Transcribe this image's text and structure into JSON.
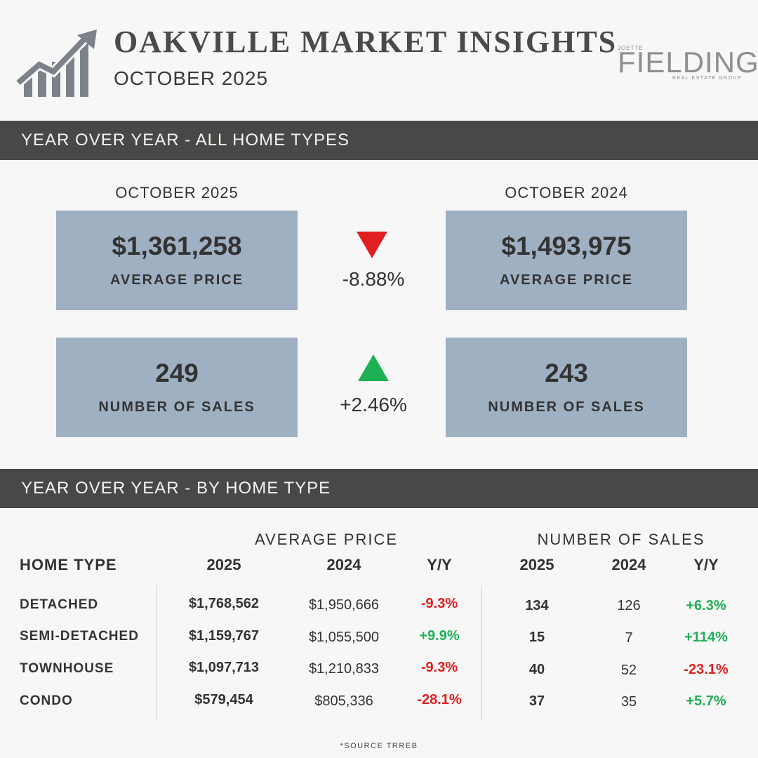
{
  "header": {
    "title": "OAKVILLE MARKET INSIGHTS",
    "subtitle": "OCTOBER 2025",
    "logo": {
      "top": "JOETTE",
      "name": "FIELDING",
      "tagline": "REAL ESTATE GROUP"
    }
  },
  "section_all": {
    "heading": "YEAR OVER YEAR - ALL HOME TYPES",
    "left_column": "OCTOBER 2025",
    "right_column": "OCTOBER 2024",
    "avg_price": {
      "current": "$1,361,258",
      "previous": "$1,493,975",
      "label": "AVERAGE PRICE",
      "change": "-8.88%",
      "direction": "down"
    },
    "sales": {
      "current": "249",
      "previous": "243",
      "label": "NUMBER OF SALES",
      "change": "+2.46%",
      "direction": "up"
    }
  },
  "section_type": {
    "heading": "YEAR OVER YEAR - BY HOME TYPE",
    "price_group": "AVERAGE PRICE",
    "sales_group": "NUMBER OF SALES",
    "col_type": "HOME TYPE",
    "col_2025": "2025",
    "col_2024": "2024",
    "col_yy": "Y/Y",
    "rows": [
      {
        "type": "DETACHED",
        "price_2025": "$1,768,562",
        "price_2024": "$1,950,666",
        "price_yy": "-9.3%",
        "sales_2025": "134",
        "sales_2024": "126",
        "sales_yy": "+6.3%"
      },
      {
        "type": "SEMI-DETACHED",
        "price_2025": "$1,159,767",
        "price_2024": "$1,055,500",
        "price_yy": "+9.9%",
        "sales_2025": "15",
        "sales_2024": "7",
        "sales_yy": "+114%"
      },
      {
        "type": "TOWNHOUSE",
        "price_2025": "$1,097,713",
        "price_2024": "$1,210,833",
        "price_yy": "-9.3%",
        "sales_2025": "40",
        "sales_2024": "52",
        "sales_yy": "-23.1%"
      },
      {
        "type": "CONDO",
        "price_2025": "$579,454",
        "price_2024": "$805,336",
        "price_yy": "-28.1%",
        "sales_2025": "37",
        "sales_2024": "35",
        "sales_yy": "+5.7%"
      }
    ]
  },
  "colors": {
    "negative": "#e02020",
    "positive": "#1db154",
    "box": "#a0b0c3",
    "band": "#4a4846"
  },
  "footer": {
    "source": "*SOURCE TRREB"
  }
}
